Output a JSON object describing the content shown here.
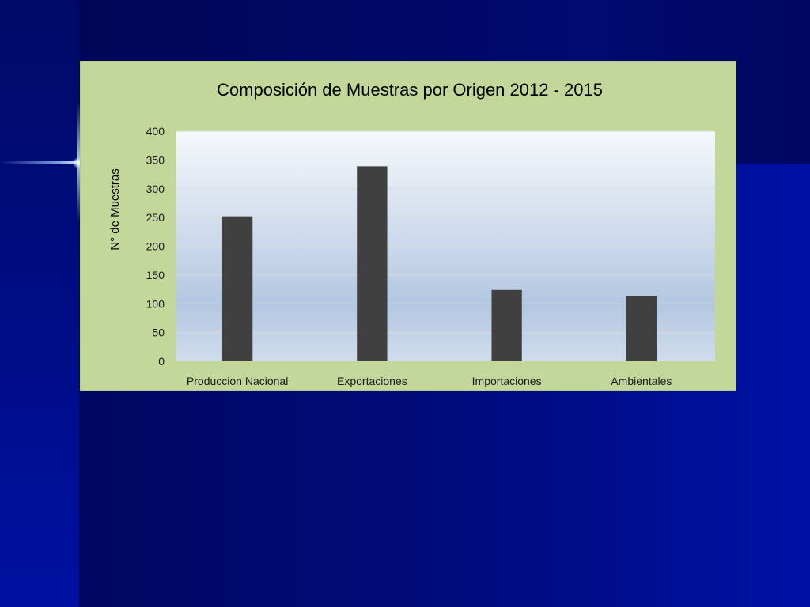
{
  "chart_data": {
    "type": "bar",
    "title": "Composición de Muestras por Origen 2012 - 2015",
    "xlabel": "",
    "ylabel": "N° de Muestras",
    "categories": [
      "Produccion Nacional",
      "Exportaciones",
      "Importaciones",
      "Ambientales"
    ],
    "values": [
      252,
      339,
      124,
      114
    ],
    "ylim": [
      0,
      400
    ],
    "yticks": [
      0,
      50,
      100,
      150,
      200,
      250,
      300,
      350,
      400
    ],
    "grid": true,
    "legend": "none",
    "colors": {
      "bar": "#404040",
      "plot_top": "#f6f8fc",
      "plot_bottom": "#cfdcec",
      "plot_mid": "#b3c7e1",
      "chart_background": "#c4d79b",
      "gridline": "#d9d9d9"
    }
  }
}
